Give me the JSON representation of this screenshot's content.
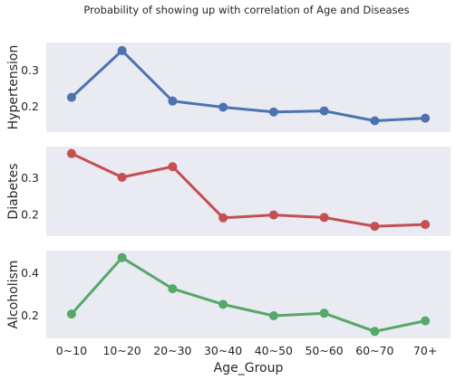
{
  "chart_data": {
    "type": "line",
    "title": "Probability of showing up with correlation of Age and Diseases",
    "xlabel": "Age_Group",
    "categories": [
      "0~10",
      "10~20",
      "20~30",
      "30~40",
      "40~50",
      "50~60",
      "60~70",
      "70+"
    ],
    "grid": false,
    "series": [
      {
        "name": "Hypertension",
        "ylabel": "Hypertension",
        "color": "#4c72b0",
        "values": [
          0.225,
          0.353,
          0.215,
          0.198,
          0.185,
          0.188,
          0.161,
          0.168
        ],
        "ylim": [
          0.13,
          0.375
        ],
        "yticks": [
          "0.2",
          "0.3"
        ],
        "ytick_values": [
          0.2,
          0.3
        ]
      },
      {
        "name": "Diabetes",
        "ylabel": "Diabetes",
        "color": "#c44e52",
        "values": [
          0.366,
          0.301,
          0.33,
          0.19,
          0.198,
          0.191,
          0.167,
          0.172
        ],
        "ylim": [
          0.14,
          0.385
        ],
        "yticks": [
          "0.3",
          "0.2"
        ],
        "ytick_values": [
          0.3,
          0.2
        ]
      },
      {
        "name": "Alcoholism",
        "ylabel": "Alcoholism",
        "color": "#55a868",
        "values": [
          0.205,
          0.472,
          0.325,
          0.251,
          0.197,
          0.209,
          0.123,
          0.173
        ],
        "ylim": [
          0.09,
          0.505
        ],
        "yticks": [
          "0.4",
          "0.2"
        ],
        "ytick_values": [
          0.4,
          0.2
        ]
      }
    ]
  }
}
